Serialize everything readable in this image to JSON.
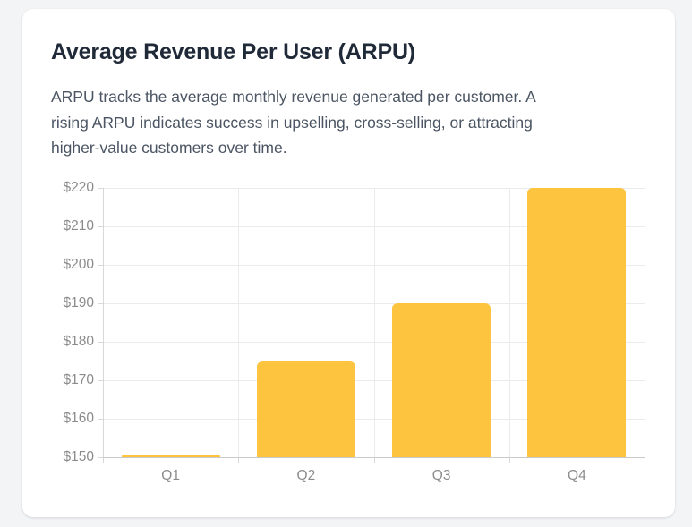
{
  "card": {
    "title": "Average Revenue Per User (ARPU)",
    "description_lines": [
      "ARPU tracks the average monthly revenue generated per customer. A",
      "rising ARPU indicates success in upselling, cross-selling, or attracting",
      "higher-value customers over time."
    ]
  },
  "chart_data": {
    "type": "bar",
    "categories": [
      "Q1",
      "Q2",
      "Q3",
      "Q4"
    ],
    "values": [
      150,
      175,
      190,
      220
    ],
    "title": "",
    "xlabel": "",
    "ylabel": "",
    "ylim": [
      150,
      220
    ],
    "ytick_step": 10,
    "ytick_prefix": "$",
    "ytick_labels": [
      "$220",
      "$210",
      "$200",
      "$190",
      "$180",
      "$170",
      "$160",
      "$150"
    ],
    "grid": true,
    "legend": false,
    "bar_color": "#FDC43F"
  },
  "colors": {
    "bar": "#FDC43F",
    "page_background": "#F3F4F6",
    "card_background": "#FFFFFF",
    "title_text": "#1F2937",
    "description_text": "#4B5563",
    "axis_label": "#8B8B8B",
    "gridline": "#EBEBEB",
    "axis_line": "#D8D8D8",
    "baseline": "#C9C9C9"
  }
}
